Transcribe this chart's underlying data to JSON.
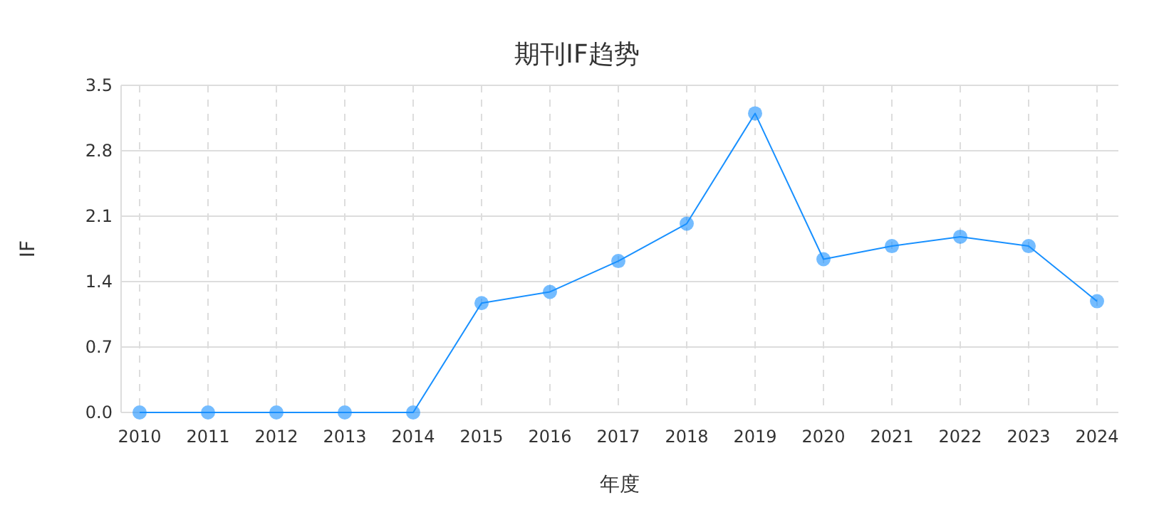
{
  "chart_data": {
    "type": "line",
    "title": "期刊IF趋势",
    "xlabel": "年度",
    "ylabel": "IF",
    "categories": [
      "2010",
      "2011",
      "2012",
      "2013",
      "2014",
      "2015",
      "2016",
      "2017",
      "2018",
      "2019",
      "2020",
      "2021",
      "2022",
      "2023",
      "2024"
    ],
    "series": [
      {
        "color": "#1890ff",
        "values": [
          0,
          0,
          0,
          0,
          0,
          1.17,
          1.29,
          1.62,
          2.02,
          3.2,
          1.64,
          1.78,
          1.88,
          1.78,
          1.19
        ]
      }
    ],
    "ylim": [
      0,
      3.5
    ],
    "yticks": [
      {
        "value": 0,
        "label": "0.0"
      },
      0.7,
      1.4,
      2.1,
      2.8,
      3.5
    ],
    "grid": true,
    "marker": "circle",
    "line_style": "solid"
  }
}
